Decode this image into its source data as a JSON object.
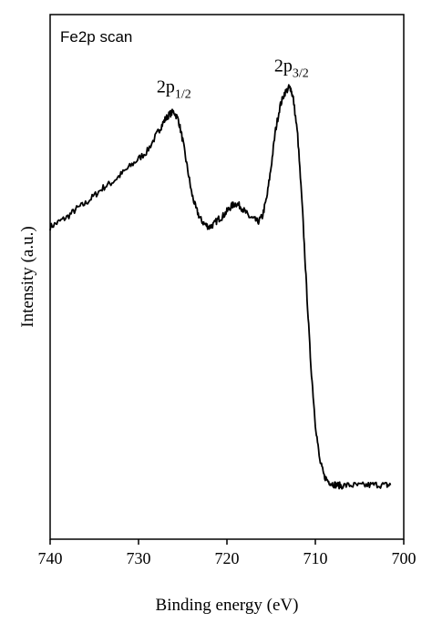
{
  "chart_data": {
    "type": "line",
    "title": "",
    "panel_label": "Fe2p scan",
    "xlabel": "Binding energy (eV)",
    "ylabel": "Intensity (a.u.)",
    "xlim": [
      740,
      700
    ],
    "ylim": [
      0,
      100
    ],
    "x_reversed": true,
    "grid": false,
    "x_ticks": [
      "740",
      "730",
      "720",
      "710",
      "700"
    ],
    "y_ticks": [],
    "annotations": [
      {
        "id": "peak-2p12",
        "base": "2p",
        "sub": "1/2",
        "x": 726,
        "y": 82
      },
      {
        "id": "peak-2p32",
        "base": "2p",
        "sub": "3/2",
        "x": 712.7,
        "y": 86
      }
    ],
    "series": [
      {
        "x": [
          740,
          739,
          738,
          737,
          736,
          735,
          734,
          733,
          732,
          731,
          730,
          729,
          728,
          727.5,
          727,
          726.5,
          726,
          725.5,
          725,
          724.5,
          724,
          723.5,
          723,
          722.5,
          722,
          721.5,
          721,
          720.5,
          720,
          719.5,
          719,
          718.5,
          718,
          717.5,
          717,
          716.5,
          716,
          715.5,
          715,
          714.5,
          714,
          713.5,
          713,
          712.8,
          712.5,
          712,
          711.5,
          711,
          710.5,
          710,
          709.5,
          709,
          708.5,
          708,
          707.5,
          707,
          706,
          705,
          704,
          703,
          702,
          701.5
        ],
        "y": [
          59.5,
          60.5,
          61.5,
          63,
          64,
          65.5,
          67,
          68,
          69.5,
          71,
          72.5,
          74,
          77,
          78.5,
          80,
          81,
          81.5,
          80,
          76,
          71,
          66,
          63,
          61,
          60,
          59.5,
          60,
          61,
          61.5,
          62.5,
          63.5,
          64,
          63.5,
          62.5,
          61.5,
          61,
          60.5,
          61.5,
          65,
          71,
          78,
          82.5,
          85,
          86,
          86,
          84,
          77,
          64,
          48,
          33,
          22,
          15,
          12,
          11,
          10.5,
          10.3,
          10.2,
          10.3,
          10.2,
          10.3,
          10.4,
          10.3,
          10.3
        ]
      }
    ]
  }
}
